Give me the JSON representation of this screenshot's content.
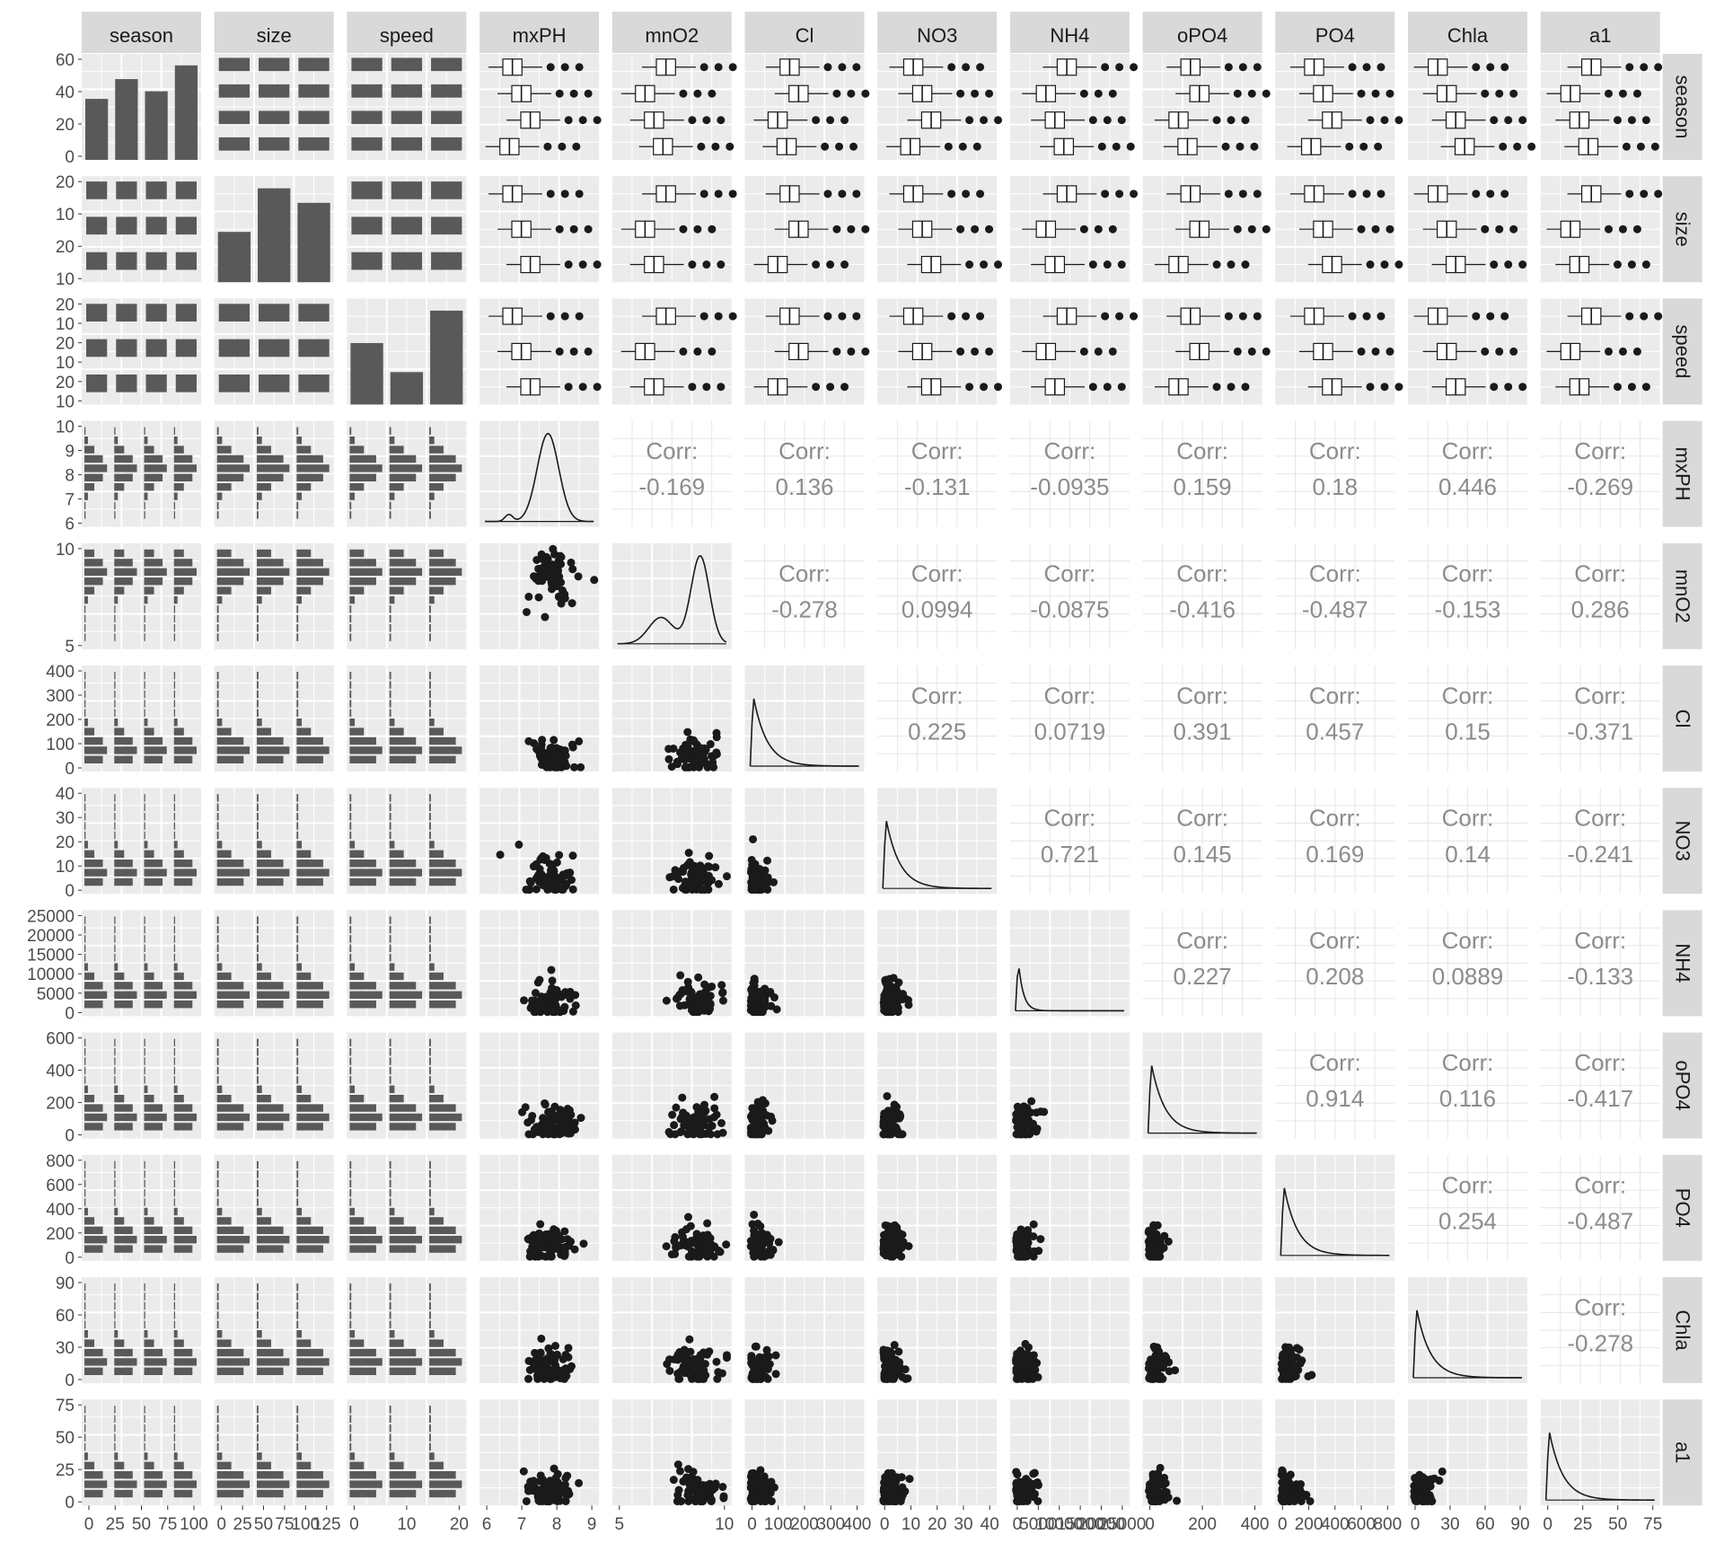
{
  "chart_data": {
    "type": "scatter",
    "title": "",
    "variables": [
      "season",
      "size",
      "speed",
      "mxPH",
      "mnO2",
      "Cl",
      "NO3",
      "NH4",
      "oPO4",
      "PO4",
      "Chla",
      "a1"
    ],
    "categorical": [
      "season",
      "size",
      "speed"
    ],
    "column_ticks": {
      "mxPH": [
        "6",
        "7",
        "8",
        "9"
      ],
      "mnO2": [
        "5",
        "10"
      ],
      "Cl": [
        "0",
        "100",
        "200",
        "300",
        "400"
      ],
      "NO3": [
        "0",
        "10",
        "20",
        "30",
        "40"
      ],
      "NH4": [
        "0",
        "5000",
        "10000",
        "15000",
        "20000",
        "25000"
      ],
      "oPO4": [
        "0",
        "200",
        "400"
      ],
      "PO4": [
        "0",
        "200",
        "400",
        "600",
        "800"
      ],
      "Chla": [
        "0",
        "30",
        "60",
        "90"
      ],
      "a1": [
        "0",
        "25",
        "50",
        "75"
      ],
      "season": [
        "0",
        "25",
        "50",
        "75",
        "100"
      ],
      "size": [
        "0",
        "25",
        "50",
        "75",
        "100",
        "125"
      ],
      "speed": [
        "0",
        "10",
        "20"
      ]
    },
    "row_ticks": {
      "season": [
        "0",
        "20",
        "40",
        "60"
      ],
      "size": [
        "10",
        "20",
        "10",
        "20"
      ],
      "speed": [
        "10",
        "20",
        "10",
        "20",
        "10",
        "20"
      ],
      "mxPH": [
        "6",
        "7",
        "8",
        "9",
        "10"
      ],
      "mnO2": [
        "5",
        "10"
      ],
      "Cl": [
        "0",
        "100",
        "200",
        "300",
        "400"
      ],
      "NO3": [
        "0",
        "10",
        "20",
        "30",
        "40"
      ],
      "NH4": [
        "0",
        "5000",
        "10000",
        "15000",
        "20000",
        "25000"
      ],
      "oPO4": [
        "0",
        "200",
        "400",
        "600"
      ],
      "PO4": [
        "0",
        "200",
        "400",
        "600",
        "800"
      ],
      "Chla": [
        "0",
        "30",
        "60",
        "90"
      ],
      "a1": [
        "0",
        "25",
        "50",
        "75"
      ]
    },
    "corr_label": "Corr:",
    "correlations": [
      {
        "row": "mxPH",
        "col": "mnO2",
        "value": "-0.169"
      },
      {
        "row": "mxPH",
        "col": "Cl",
        "value": "0.136"
      },
      {
        "row": "mxPH",
        "col": "NO3",
        "value": "-0.131"
      },
      {
        "row": "mxPH",
        "col": "NH4",
        "value": "-0.0935"
      },
      {
        "row": "mxPH",
        "col": "oPO4",
        "value": "0.159"
      },
      {
        "row": "mxPH",
        "col": "PO4",
        "value": "0.18"
      },
      {
        "row": "mxPH",
        "col": "Chla",
        "value": "0.446"
      },
      {
        "row": "mxPH",
        "col": "a1",
        "value": "-0.269"
      },
      {
        "row": "mnO2",
        "col": "Cl",
        "value": "-0.278"
      },
      {
        "row": "mnO2",
        "col": "NO3",
        "value": "0.0994"
      },
      {
        "row": "mnO2",
        "col": "NH4",
        "value": "-0.0875"
      },
      {
        "row": "mnO2",
        "col": "oPO4",
        "value": "-0.416"
      },
      {
        "row": "mnO2",
        "col": "PO4",
        "value": "-0.487"
      },
      {
        "row": "mnO2",
        "col": "Chla",
        "value": "-0.153"
      },
      {
        "row": "mnO2",
        "col": "a1",
        "value": "0.286"
      },
      {
        "row": "Cl",
        "col": "NO3",
        "value": "0.225"
      },
      {
        "row": "Cl",
        "col": "NH4",
        "value": "0.0719"
      },
      {
        "row": "Cl",
        "col": "oPO4",
        "value": "0.391"
      },
      {
        "row": "Cl",
        "col": "PO4",
        "value": "0.457"
      },
      {
        "row": "Cl",
        "col": "Chla",
        "value": "0.15"
      },
      {
        "row": "Cl",
        "col": "a1",
        "value": "-0.371"
      },
      {
        "row": "NO3",
        "col": "NH4",
        "value": "0.721"
      },
      {
        "row": "NO3",
        "col": "oPO4",
        "value": "0.145"
      },
      {
        "row": "NO3",
        "col": "PO4",
        "value": "0.169"
      },
      {
        "row": "NO3",
        "col": "Chla",
        "value": "0.14"
      },
      {
        "row": "NO3",
        "col": "a1",
        "value": "-0.241"
      },
      {
        "row": "NH4",
        "col": "oPO4",
        "value": "0.227"
      },
      {
        "row": "NH4",
        "col": "PO4",
        "value": "0.208"
      },
      {
        "row": "NH4",
        "col": "Chla",
        "value": "0.0889"
      },
      {
        "row": "NH4",
        "col": "a1",
        "value": "-0.133"
      },
      {
        "row": "oPO4",
        "col": "PO4",
        "value": "0.914"
      },
      {
        "row": "oPO4",
        "col": "Chla",
        "value": "0.116"
      },
      {
        "row": "oPO4",
        "col": "a1",
        "value": "-0.417"
      },
      {
        "row": "PO4",
        "col": "Chla",
        "value": "0.254"
      },
      {
        "row": "PO4",
        "col": "a1",
        "value": "-0.487"
      },
      {
        "row": "Chla",
        "col": "a1",
        "value": "-0.278"
      }
    ],
    "season_counts": [
      40,
      53,
      45,
      62
    ],
    "size_counts": [
      45,
      84,
      71
    ],
    "speed_counts": [
      55,
      29,
      84
    ],
    "grid": true,
    "legend": "none"
  },
  "colors": {
    "panel_bg": "#ebebeb",
    "grid": "#ffffff",
    "strip_bg": "#d9d9d9",
    "mark": "#1a1a1a",
    "bar": "#595959",
    "corr_text": "#8c8c8c",
    "axis_text": "#4d4d4d",
    "strip_text": "#1a1a1a"
  }
}
